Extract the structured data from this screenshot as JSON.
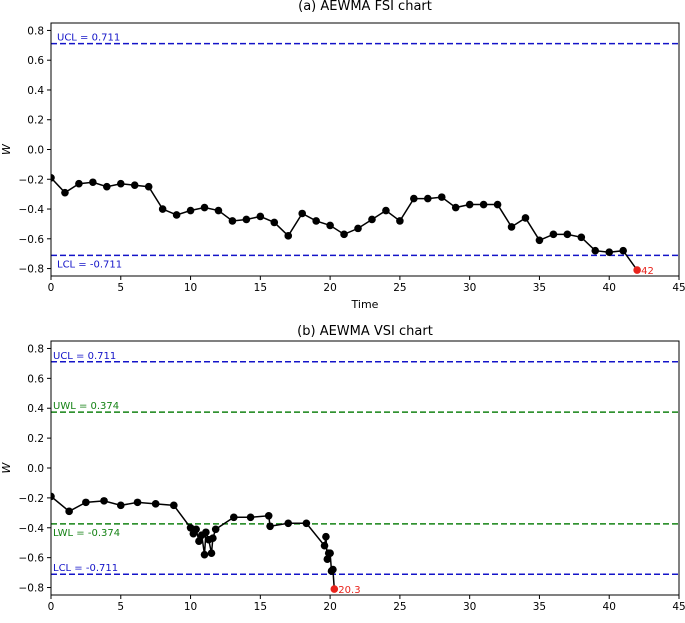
{
  "figure": {
    "background": "#ffffff"
  },
  "chart_data": [
    {
      "type": "line",
      "title": "(a)  AEWMA FSI chart",
      "xlabel": "Time",
      "ylabel": "W",
      "xlim": [
        0,
        45
      ],
      "ylim": [
        -0.85,
        0.85
      ],
      "xticks": [
        0,
        5,
        10,
        15,
        20,
        25,
        30,
        35,
        40,
        45
      ],
      "yticks": [
        0.8,
        0.6,
        0.4,
        0.2,
        0.0,
        -0.2,
        -0.4,
        -0.6,
        -0.8
      ],
      "ytick_labels": [
        "0.8",
        "0.6",
        "0.4",
        "0.2",
        "0.0",
        "−0.2",
        "−0.4",
        "−0.6",
        "−0.8"
      ],
      "grid": false,
      "series": [
        {
          "color": "#000000",
          "marker": "circle",
          "x": [
            0,
            1,
            2,
            3,
            4,
            5,
            6,
            7,
            8,
            9,
            10,
            11,
            12,
            13,
            14,
            15,
            16,
            17,
            18,
            19,
            20,
            21,
            22,
            23,
            24,
            25,
            26,
            27,
            28,
            29,
            30,
            31,
            32,
            33,
            34,
            35,
            36,
            37,
            38,
            39,
            40,
            41
          ],
          "y": [
            -0.19,
            -0.29,
            -0.23,
            -0.22,
            -0.25,
            -0.23,
            -0.24,
            -0.25,
            -0.4,
            -0.44,
            -0.41,
            -0.39,
            -0.41,
            -0.48,
            -0.47,
            -0.45,
            -0.49,
            -0.58,
            -0.43,
            -0.48,
            -0.51,
            -0.57,
            -0.53,
            -0.47,
            -0.41,
            -0.48,
            -0.33,
            -0.33,
            -0.32,
            -0.39,
            -0.37,
            -0.37,
            -0.37,
            -0.52,
            -0.46,
            -0.61,
            -0.57,
            -0.57,
            -0.59,
            -0.68,
            -0.69,
            -0.68
          ]
        }
      ],
      "signal": {
        "x": 42,
        "y": -0.81,
        "label": "42",
        "color": "#e8231c"
      },
      "limits": [
        {
          "label": "UCL = 0.711",
          "value": 0.711,
          "color": "#1414c8",
          "label_pos": "above"
        },
        {
          "label": "LCL = -0.711",
          "value": -0.711,
          "color": "#1414c8",
          "label_pos": "below"
        }
      ]
    },
    {
      "type": "line",
      "title": "(b)  AEWMA VSI chart",
      "xlabel": "Time",
      "ylabel": "W",
      "xlim": [
        0,
        45
      ],
      "ylim": [
        -0.85,
        0.85
      ],
      "xticks": [
        0,
        5,
        10,
        15,
        20,
        25,
        30,
        35,
        40,
        45
      ],
      "yticks": [
        0.8,
        0.6,
        0.4,
        0.2,
        0.0,
        -0.2,
        -0.4,
        -0.6,
        -0.8
      ],
      "ytick_labels": [
        "0.8",
        "0.6",
        "0.4",
        "0.2",
        "0.0",
        "−0.2",
        "−0.4",
        "−0.6",
        "−0.8"
      ],
      "grid": false,
      "series": [
        {
          "color": "#000000",
          "marker": "circle",
          "x": [
            0,
            1.3,
            2.5,
            3.8,
            5.0,
            6.2,
            7.5,
            8.8,
            10.0,
            10.2,
            10.4,
            10.6,
            10.8,
            11.0,
            11.1,
            11.3,
            11.5,
            11.6,
            11.8,
            13.1,
            14.3,
            15.6,
            15.7,
            17.0,
            18.3,
            19.6,
            19.7,
            19.8,
            19.9,
            20.0,
            20.1,
            20.2
          ],
          "y": [
            -0.19,
            -0.29,
            -0.23,
            -0.22,
            -0.25,
            -0.23,
            -0.24,
            -0.25,
            -0.4,
            -0.44,
            -0.41,
            -0.49,
            -0.45,
            -0.58,
            -0.43,
            -0.48,
            -0.57,
            -0.47,
            -0.41,
            -0.33,
            -0.33,
            -0.32,
            -0.39,
            -0.37,
            -0.37,
            -0.52,
            -0.46,
            -0.61,
            -0.57,
            -0.57,
            -0.69,
            -0.68
          ]
        }
      ],
      "signal": {
        "x": 20.3,
        "y": -0.81,
        "label": "20.3",
        "color": "#e8231c"
      },
      "limits": [
        {
          "label": "UCL = 0.711",
          "value": 0.711,
          "color": "#1414c8",
          "label_pos": "above"
        },
        {
          "label": "UWL = 0.374",
          "value": 0.374,
          "color": "#148214",
          "label_pos": "above"
        },
        {
          "label": "LWL = -0.374",
          "value": -0.374,
          "color": "#148214",
          "label_pos": "below"
        },
        {
          "label": "LCL = -0.711",
          "value": -0.711,
          "color": "#1414c8",
          "label_pos": "above"
        }
      ]
    }
  ]
}
